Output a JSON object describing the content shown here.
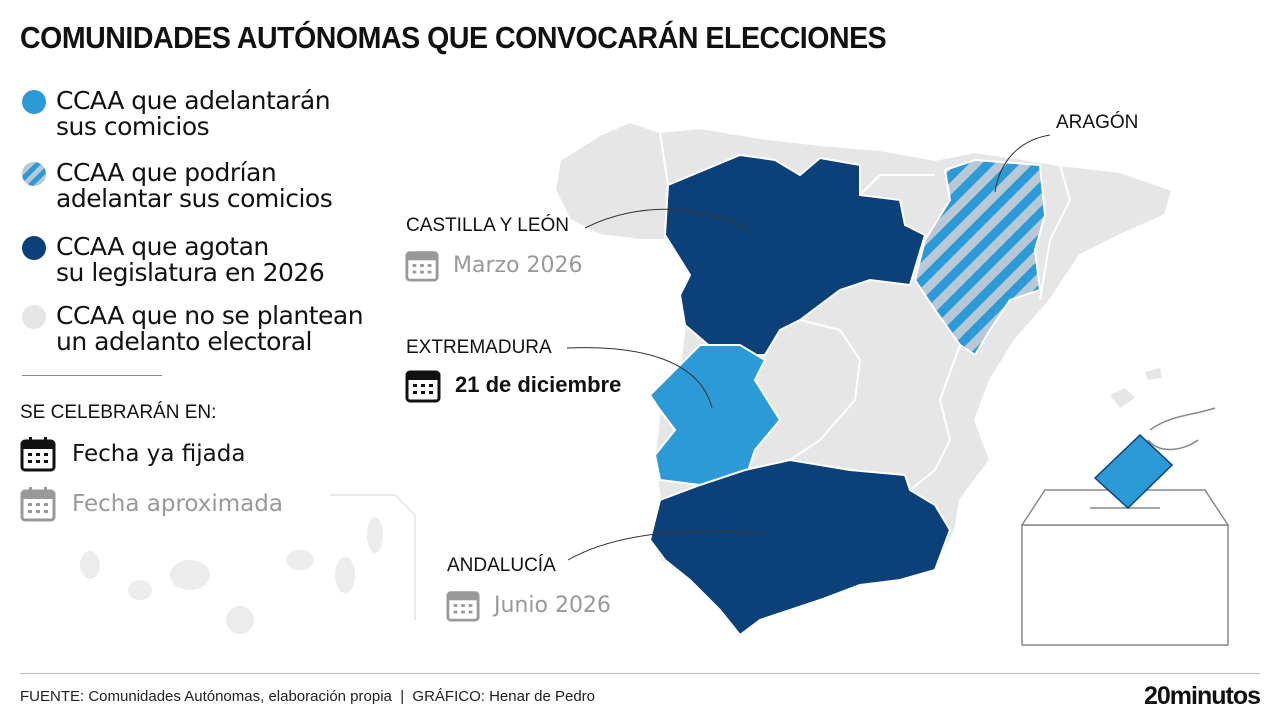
{
  "title": "COMUNIDADES AUTÓNOMAS QUE CONVOCARÁN ELECCIONES",
  "colors": {
    "adelantan": "#2b9ad6",
    "agotan": "#0c4079",
    "no_adelanto": "#e6e6e6",
    "text_grey": "#999999"
  },
  "legend": [
    {
      "style": "solid-light-blue",
      "lines": [
        "CCAA que adelantarán",
        "sus comicios"
      ]
    },
    {
      "style": "hatched-light-blue",
      "lines": [
        "CCAA que podrían",
        "adelantar sus comicios"
      ]
    },
    {
      "style": "solid-dark-blue",
      "lines": [
        "CCAA que agotan",
        "su legislatura en 2026"
      ]
    },
    {
      "style": "solid-grey",
      "lines": [
        "CCAA que no se plantean",
        "un adelanto electoral"
      ]
    }
  ],
  "dates_legend": {
    "heading": "SE CELEBRARÁN EN:",
    "fixed": {
      "icon": "calendar-icon",
      "label": "Fecha ya fijada"
    },
    "approx": {
      "icon": "calendar-icon",
      "label": "Fecha aproximada"
    }
  },
  "regions": {
    "aragon": {
      "name": "ARAGÓN",
      "status": "podrían adelantar"
    },
    "castilla_leon": {
      "name": "CASTILLA Y LEÓN",
      "date": "Marzo 2026",
      "date_type": "approx",
      "status": "agotan legislatura"
    },
    "extremadura": {
      "name": "EXTREMADURA",
      "date": "21 de diciembre",
      "date_type": "fixed",
      "status": "adelantarán"
    },
    "andalucia": {
      "name": "ANDALUCÍA",
      "date": "Junio 2026",
      "date_type": "approx",
      "status": "agotan legislatura"
    }
  },
  "footer": {
    "source": "FUENTE: Comunidades Autónomas, elaboración propia  |  GRÁFICO: Henar de Pedro",
    "logo": "20minutos"
  }
}
